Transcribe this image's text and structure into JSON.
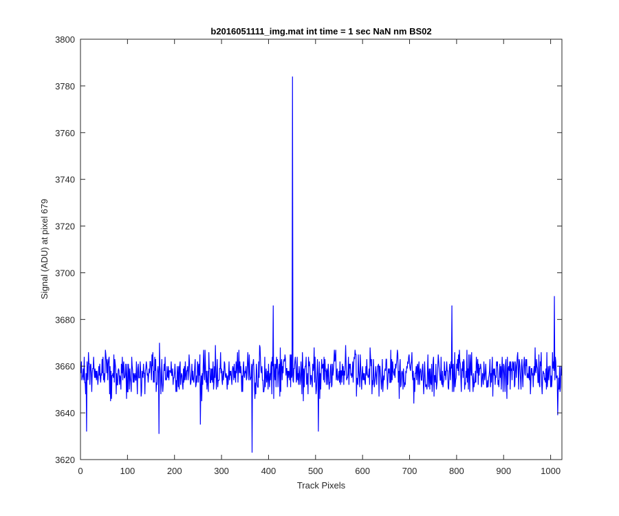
{
  "chart_data": {
    "type": "line",
    "title": "b2016051111_img.mat int time = 1 sec  NaN nm BS02",
    "xlabel": "Track Pixels",
    "ylabel": "Signal (ADU) at pixel 679",
    "xlim": [
      0,
      1024
    ],
    "ylim": [
      3620,
      3800
    ],
    "x_ticks": [
      0,
      100,
      200,
      300,
      400,
      500,
      600,
      700,
      800,
      900,
      1000
    ],
    "y_ticks": [
      3620,
      3640,
      3660,
      3680,
      3700,
      3720,
      3740,
      3760,
      3780,
      3800
    ],
    "grid": false,
    "box": true,
    "series": [
      {
        "color": "#0000ff",
        "n_points": 1024,
        "baseline_mean": 3657,
        "noise_range_typical": [
          3643,
          3672
        ],
        "features": [
          {
            "x": 13,
            "y": 3632
          },
          {
            "x": 167,
            "y": 3631
          },
          {
            "x": 255,
            "y": 3635
          },
          {
            "x": 365,
            "y": 3623
          },
          {
            "x": 410,
            "y": 3686
          },
          {
            "x": 451,
            "y": 3784
          },
          {
            "x": 506,
            "y": 3632
          },
          {
            "x": 790,
            "y": 3686
          },
          {
            "x": 1008,
            "y": 3690
          },
          {
            "x": 1015,
            "y": 3639
          }
        ]
      }
    ]
  }
}
